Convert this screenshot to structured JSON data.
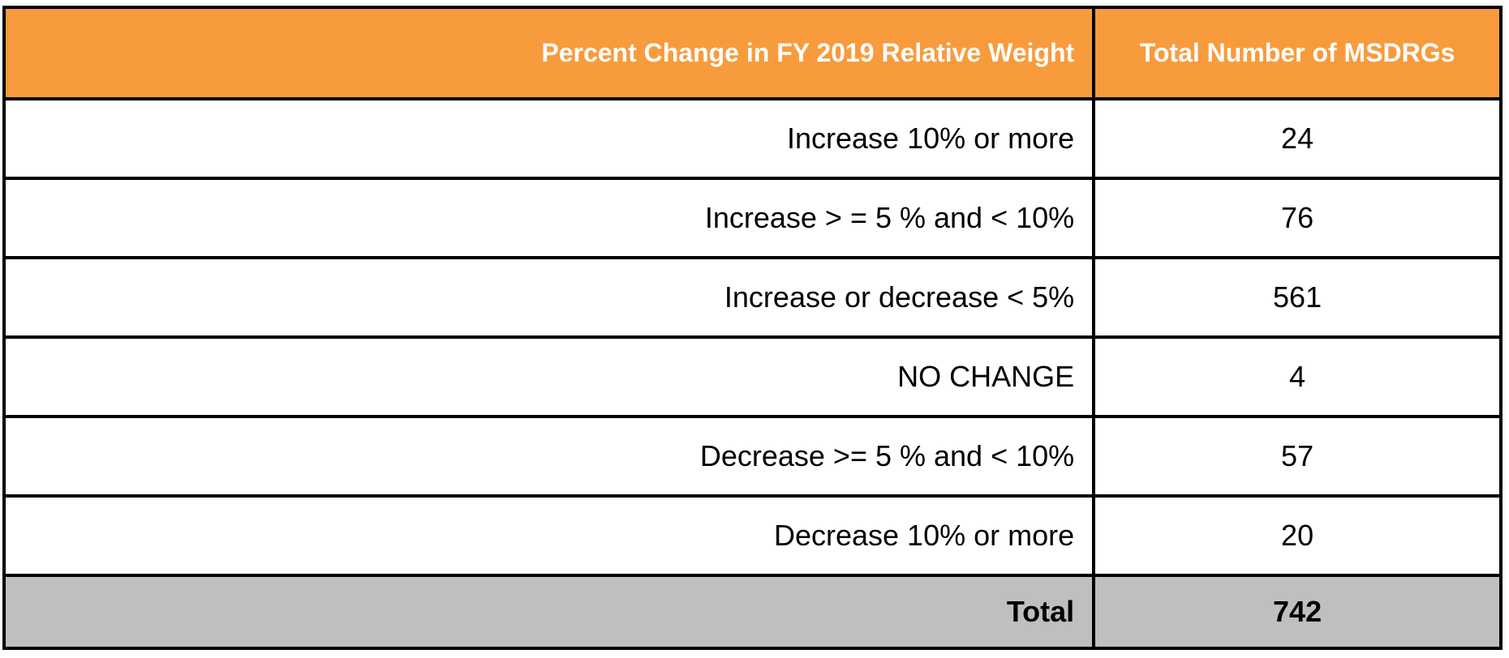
{
  "colors": {
    "header_bg": "#F89B3C",
    "header_text": "#FFFFFF",
    "row_bg": "#FFFFFF",
    "row_text": "#000000",
    "total_bg": "#BFBFBF",
    "border": "#000000"
  },
  "table": {
    "header": {
      "col1": "Percent Change in FY 2019 Relative Weight",
      "col2": "Total Number of MSDRGs"
    },
    "rows": [
      {
        "label": "Increase 10% or more",
        "value": "24"
      },
      {
        "label": "Increase > = 5 % and < 10%",
        "value": "76"
      },
      {
        "label": "Increase or decrease < 5%",
        "value": "561"
      },
      {
        "label": "NO CHANGE",
        "value": "4"
      },
      {
        "label": "Decrease >= 5 % and < 10%",
        "value": "57"
      },
      {
        "label": "Decrease 10% or more",
        "value": "20"
      }
    ],
    "total_row": {
      "label": "Total",
      "value": "742"
    }
  },
  "chart_data": {
    "type": "table",
    "title": "",
    "columns": [
      "Percent Change in FY 2019 Relative Weight",
      "Total Number of MSDRGs"
    ],
    "rows": [
      [
        "Increase 10% or more",
        24
      ],
      [
        "Increase > = 5 % and < 10%",
        76
      ],
      [
        "Increase or decrease < 5%",
        561
      ],
      [
        "NO CHANGE",
        4
      ],
      [
        "Decrease >= 5 % and < 10%",
        57
      ],
      [
        "Decrease 10% or more",
        20
      ]
    ],
    "total": [
      "Total",
      742
    ],
    "layout_hints": {
      "header_background": "#F89B3C",
      "total_row_background": "#BFBFBF",
      "grid": true,
      "label_alignment": "right",
      "value_alignment": "center"
    }
  }
}
